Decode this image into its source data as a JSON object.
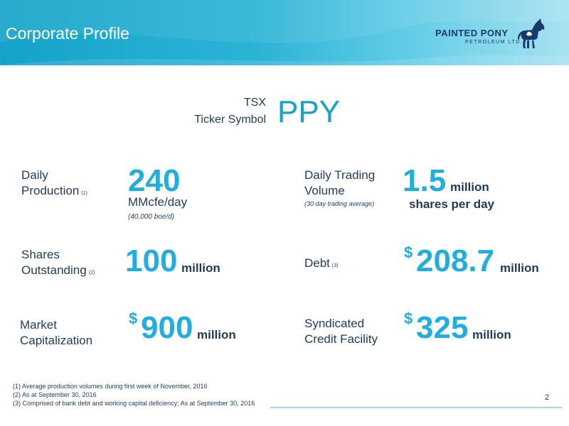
{
  "header": {
    "title": "Corporate Profile",
    "logo_name": "PAINTED PONY",
    "logo_sub": "PETROLEUM LTD."
  },
  "ticker": {
    "exchange": "TSX",
    "label": "Ticker Symbol",
    "symbol": "PPY"
  },
  "metrics": {
    "daily_production": {
      "label_line1": "Daily",
      "label_line2": "Production",
      "note": "(1)",
      "value": "240",
      "unit": "MMcfe/day",
      "subnote": "(40,000 boe/d)"
    },
    "daily_trading_volume": {
      "label_line1": "Daily Trading",
      "label_line2": "Volume",
      "subnote": "(30 day trading average)",
      "value": "1.5",
      "unit": "million",
      "unit_line2": "shares per day"
    },
    "shares_outstanding": {
      "label_line1": "Shares",
      "label_line2": "Outstanding",
      "note": "(2)",
      "value": "100",
      "unit": "million"
    },
    "debt": {
      "label": "Debt",
      "note": "(3)",
      "currency": "$",
      "value": "208.7",
      "unit": "million"
    },
    "market_cap": {
      "label_line1": "Market",
      "label_line2": "Capitalization",
      "currency": "$",
      "value": "900",
      "unit": "million"
    },
    "credit_facility": {
      "label_line1": "Syndicated",
      "label_line2": "Credit Facility",
      "currency": "$",
      "value": "325",
      "unit": "million"
    }
  },
  "footnotes": [
    "(1) Average production volumes during first week of November, 2016",
    "(2) As at September 30, 2016",
    "(3) Comprised of bank debt and working capital deficiency; As at September 30, 2016"
  ],
  "page_number": "2",
  "colors": {
    "accent": "#20aee0",
    "header": "#15a3c9",
    "text": "#1f3b57"
  }
}
